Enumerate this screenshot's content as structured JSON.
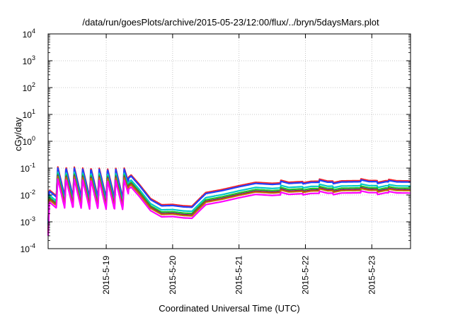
{
  "chart_data": {
    "type": "line",
    "title": "/data/run/goesPlots/archive/2015-05-23/12:00/flux/../bryn/5daysMars.plot",
    "xlabel": "Coordinated Universal Time (UTC)",
    "ylabel": "cGy/day",
    "yscale": "log",
    "ylim": [
      0.0001,
      10000
    ],
    "xlim": [
      "2015-05-18 03:00",
      "2015-05-23 14:00"
    ],
    "grid": true,
    "x_ticks": [
      "2015-5-19",
      "2015-5-20",
      "2015-5-21",
      "2015-5-22",
      "2015-5-23"
    ],
    "y_ticks": [
      {
        "base": "10",
        "exp": "-4"
      },
      {
        "base": "10",
        "exp": "-3"
      },
      {
        "base": "10",
        "exp": "-2"
      },
      {
        "base": "10",
        "exp": "-1"
      },
      {
        "base": "10",
        "exp": "0"
      },
      {
        "base": "10",
        "exp": "1"
      },
      {
        "base": "10",
        "exp": "2"
      },
      {
        "base": "10",
        "exp": "3"
      },
      {
        "base": "10",
        "exp": "4"
      }
    ],
    "series": [
      {
        "color": "#ff2020",
        "offset": 0.09
      },
      {
        "color": "#2040ff",
        "offset": 0.05
      },
      {
        "color": "#00c8c8",
        "offset": -0.1
      },
      {
        "color": "#20c020",
        "offset": -0.18
      },
      {
        "color": "#800080",
        "offset": -0.24
      },
      {
        "color": "#c07000",
        "offset": -0.27
      },
      {
        "color": "#ff00ff",
        "offset": -0.36
      }
    ],
    "base_curve": [
      {
        "x": "2015-05-18 03:00",
        "y": 0.0028
      },
      {
        "x": "2015-05-18 06:00",
        "y": 0.03
      },
      {
        "x": "2015-05-19 06:00",
        "y": 0.025
      },
      {
        "x": "2015-05-19 09:00",
        "y": 0.045
      },
      {
        "x": "2015-05-19 12:00",
        "y": 0.02
      },
      {
        "x": "2015-05-19 16:00",
        "y": 0.006
      },
      {
        "x": "2015-05-19 20:00",
        "y": 0.0035
      },
      {
        "x": "2015-05-20 00:00",
        "y": 0.0036
      },
      {
        "x": "2015-05-20 04:00",
        "y": 0.0032
      },
      {
        "x": "2015-05-20 07:00",
        "y": 0.0031
      },
      {
        "x": "2015-05-20 09:00",
        "y": 0.005
      },
      {
        "x": "2015-05-20 12:00",
        "y": 0.01
      },
      {
        "x": "2015-05-20 18:00",
        "y": 0.013
      },
      {
        "x": "2015-05-21 00:00",
        "y": 0.018
      },
      {
        "x": "2015-05-21 06:00",
        "y": 0.024
      },
      {
        "x": "2015-05-21 12:00",
        "y": 0.022
      },
      {
        "x": "2015-05-21 18:00",
        "y": 0.024
      },
      {
        "x": "2015-05-22 00:00",
        "y": 0.026
      },
      {
        "x": "2015-05-22 12:00",
        "y": 0.027
      },
      {
        "x": "2015-05-23 00:00",
        "y": 0.028
      },
      {
        "x": "2015-05-23 14:00",
        "y": 0.027
      }
    ],
    "oscillation": [
      {
        "start": "2015-05-18 03:00",
        "end": "2015-05-19 08:00",
        "period_hours": 3,
        "log_amplitude": 1.1
      }
    ],
    "steps": [
      {
        "x": "2015-05-21 15:00",
        "log_delta": 0.1
      },
      {
        "x": "2015-05-21 23:00",
        "log_delta": -0.05
      },
      {
        "x": "2015-05-22 05:00",
        "log_delta": 0.08
      },
      {
        "x": "2015-05-22 10:00",
        "log_delta": -0.06
      },
      {
        "x": "2015-05-22 20:00",
        "log_delta": 0.07
      },
      {
        "x": "2015-05-23 02:00",
        "log_delta": -0.07
      },
      {
        "x": "2015-05-23 06:00",
        "log_delta": 0.05
      }
    ]
  }
}
